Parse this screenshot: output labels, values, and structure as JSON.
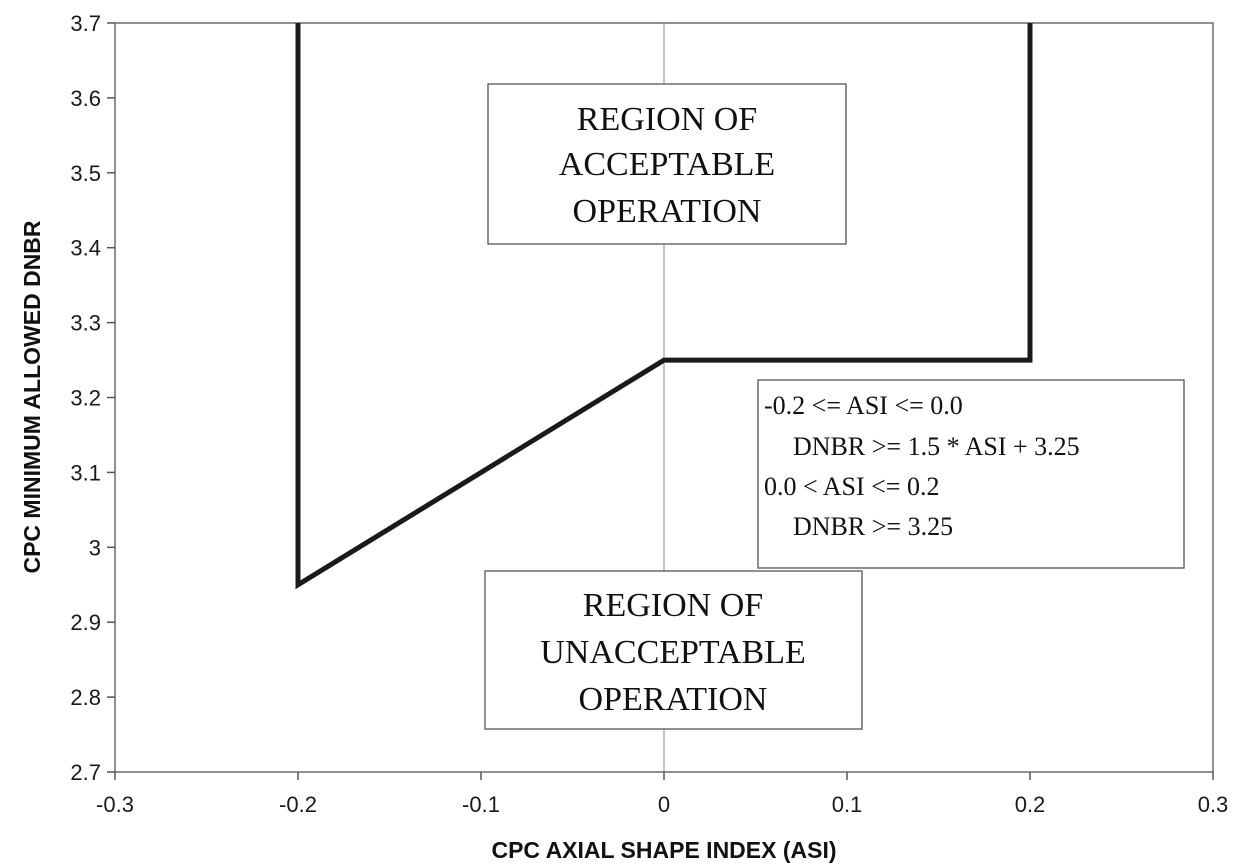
{
  "chart_data": {
    "type": "line",
    "xlabel": "CPC AXIAL SHAPE INDEX (ASI)",
    "ylabel": "CPC MINIMUM ALLOWED DNBR",
    "xlim": [
      -0.3,
      0.3
    ],
    "ylim": [
      2.7,
      3.7
    ],
    "x_ticks": [
      -0.3,
      -0.2,
      -0.1,
      0,
      0.1,
      0.2,
      0.3
    ],
    "x_tick_labels": [
      "-0.3",
      "-0.2",
      "-0.1",
      "0",
      "0.1",
      "0.2",
      "0.3"
    ],
    "y_ticks": [
      2.7,
      2.8,
      2.9,
      3.0,
      3.1,
      3.2,
      3.3,
      3.4,
      3.5,
      3.6,
      3.7
    ],
    "y_tick_labels": [
      "2.7",
      "2.8",
      "2.9",
      "3",
      "3.1",
      "3.2",
      "3.3",
      "3.4",
      "3.5",
      "3.6",
      "3.7"
    ],
    "grid": false,
    "reference_line_x": 0,
    "series": [
      {
        "x": [
          -0.2,
          -0.2,
          0.0,
          0.2,
          0.2
        ],
        "y": [
          3.7,
          2.95,
          3.25,
          3.25,
          3.7
        ],
        "color": "#1a1a1a"
      }
    ],
    "annotations": {
      "acceptable_region": [
        "REGION OF",
        "ACCEPTABLE",
        "OPERATION"
      ],
      "unacceptable_region": [
        "REGION OF",
        "UNACCEPTABLE",
        "OPERATION"
      ],
      "equations": [
        "-0.2 <= ASI <= 0.0",
        "DNBR >= 1.5 * ASI + 3.25",
        "0.0 < ASI <= 0.2",
        "DNBR >= 3.25"
      ]
    }
  }
}
